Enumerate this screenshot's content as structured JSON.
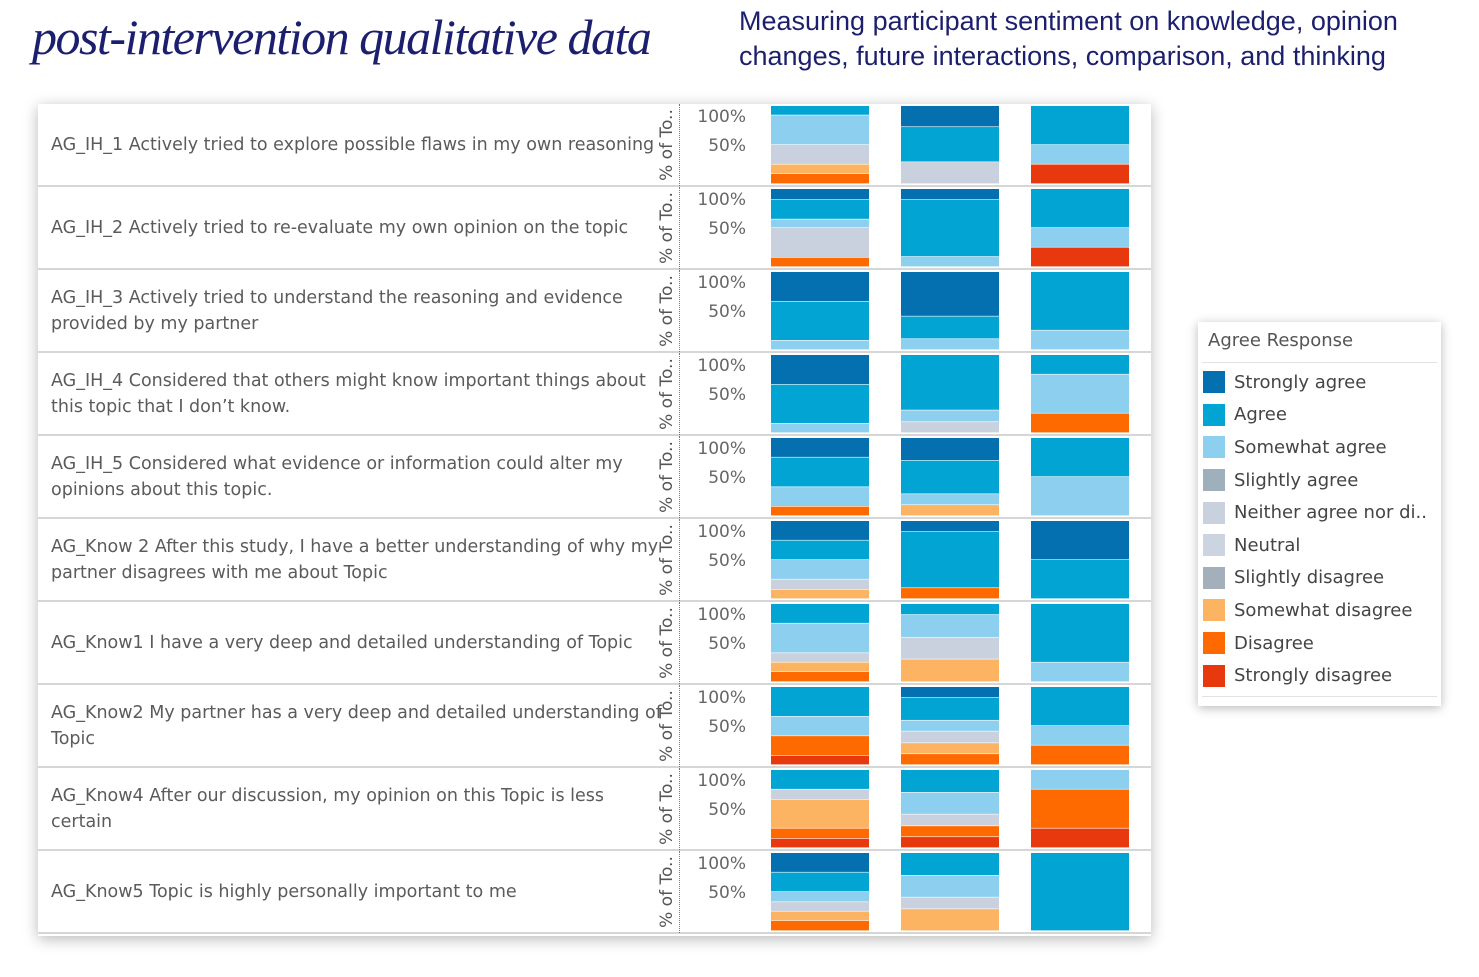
{
  "header": {
    "title": "post-intervention qualitative data",
    "subtitle": "Measuring participant sentiment on knowledge, opinion changes, future interactions, comparison, and thinking"
  },
  "chart_data": {
    "type": "bar",
    "subtype": "100% stacked column, small multiples (one row per survey item, three columns per row)",
    "y_axis_title": "% of To..",
    "y_ticks": [
      "100%",
      "50%"
    ],
    "ylim": [
      0,
      100
    ],
    "legend": {
      "title": "Agree Response",
      "placement": "right",
      "items": [
        {
          "name": "Strongly agree",
          "color": "#0570b0"
        },
        {
          "name": "Agree",
          "color": "#02a4d3"
        },
        {
          "name": "Somewhat agree",
          "color": "#8ccfee"
        },
        {
          "name": "Slightly agree",
          "color": "#9fb0bd"
        },
        {
          "name": "Neither agree nor di..",
          "color": "#c8d1dd"
        },
        {
          "name": "Neutral",
          "color": "#ccd4df"
        },
        {
          "name": "Slightly disagree",
          "color": "#a3b0bc"
        },
        {
          "name": "Somewhat disagree",
          "color": "#fdb462"
        },
        {
          "name": "Disagree",
          "color": "#ff6a00"
        },
        {
          "name": "Strongly disagree",
          "color": "#e8380d"
        }
      ]
    },
    "rows": [
      {
        "label": "AG_IH_1 Actively tried to explore possible flaws in my own reasoning",
        "bars": [
          [
            {
              "c": "Agree",
              "v": 12
            },
            {
              "c": "Somewhat agree",
              "v": 38
            },
            {
              "c": "Neither agree nor di..",
              "v": 25
            },
            {
              "c": "Somewhat disagree",
              "v": 12
            },
            {
              "c": "Disagree",
              "v": 13
            }
          ],
          [
            {
              "c": "Strongly agree",
              "v": 27
            },
            {
              "c": "Agree",
              "v": 45
            },
            {
              "c": "Neither agree nor di..",
              "v": 28
            }
          ],
          [
            {
              "c": "Agree",
              "v": 50
            },
            {
              "c": "Somewhat agree",
              "v": 25
            },
            {
              "c": "Strongly disagree",
              "v": 25
            }
          ]
        ]
      },
      {
        "label": "AG_IH_2 Actively tried to re-evaluate my own opinion on the topic",
        "bars": [
          [
            {
              "c": "Strongly agree",
              "v": 14
            },
            {
              "c": "Agree",
              "v": 25
            },
            {
              "c": "Somewhat agree",
              "v": 11
            },
            {
              "c": "Neither agree nor di..",
              "v": 38
            },
            {
              "c": "Disagree",
              "v": 12
            }
          ],
          [
            {
              "c": "Strongly agree",
              "v": 14
            },
            {
              "c": "Agree",
              "v": 73
            },
            {
              "c": "Somewhat agree",
              "v": 13
            }
          ],
          [
            {
              "c": "Agree",
              "v": 50
            },
            {
              "c": "Somewhat agree",
              "v": 25
            },
            {
              "c": "Strongly disagree",
              "v": 25
            }
          ]
        ]
      },
      {
        "label": "AG_IH_3 Actively tried to understand the reasoning and evidence provided by my partner",
        "bars": [
          [
            {
              "c": "Strongly agree",
              "v": 38
            },
            {
              "c": "Agree",
              "v": 50
            },
            {
              "c": "Somewhat agree",
              "v": 12
            }
          ],
          [
            {
              "c": "Strongly agree",
              "v": 57
            },
            {
              "c": "Agree",
              "v": 29
            },
            {
              "c": "Somewhat agree",
              "v": 14
            }
          ],
          [
            {
              "c": "Agree",
              "v": 75
            },
            {
              "c": "Somewhat agree",
              "v": 25
            }
          ]
        ]
      },
      {
        "label": "AG_IH_4 Considered that others might know important things about this topic that I don’t know.",
        "bars": [
          [
            {
              "c": "Strongly agree",
              "v": 38
            },
            {
              "c": "Agree",
              "v": 50
            },
            {
              "c": "Somewhat agree",
              "v": 12
            }
          ],
          [
            {
              "c": "Agree",
              "v": 71
            },
            {
              "c": "Somewhat agree",
              "v": 15
            },
            {
              "c": "Neither agree nor di..",
              "v": 14
            }
          ],
          [
            {
              "c": "Agree",
              "v": 25
            },
            {
              "c": "Somewhat agree",
              "v": 50
            },
            {
              "c": "Disagree",
              "v": 25
            }
          ]
        ]
      },
      {
        "label": "AG_IH_5 Considered what evidence or information could alter my opinions about this topic.",
        "bars": [
          [
            {
              "c": "Strongly agree",
              "v": 25
            },
            {
              "c": "Agree",
              "v": 38
            },
            {
              "c": "Somewhat agree",
              "v": 25
            },
            {
              "c": "Disagree",
              "v": 12
            }
          ],
          [
            {
              "c": "Strongly agree",
              "v": 29
            },
            {
              "c": "Agree",
              "v": 43
            },
            {
              "c": "Somewhat agree",
              "v": 14
            },
            {
              "c": "Somewhat disagree",
              "v": 14
            }
          ],
          [
            {
              "c": "Agree",
              "v": 50
            },
            {
              "c": "Somewhat agree",
              "v": 50
            }
          ]
        ]
      },
      {
        "label": "AG_Know 2 After this study, I have a better understanding of why my partner disagrees with me about Topic",
        "bars": [
          [
            {
              "c": "Strongly agree",
              "v": 25
            },
            {
              "c": "Agree",
              "v": 25
            },
            {
              "c": "Somewhat agree",
              "v": 25
            },
            {
              "c": "Neither agree nor di..",
              "v": 13
            },
            {
              "c": "Somewhat disagree",
              "v": 12
            }
          ],
          [
            {
              "c": "Strongly agree",
              "v": 14
            },
            {
              "c": "Agree",
              "v": 72
            },
            {
              "c": "Disagree",
              "v": 14
            }
          ],
          [
            {
              "c": "Strongly agree",
              "v": 50
            },
            {
              "c": "Agree",
              "v": 50
            }
          ]
        ]
      },
      {
        "label": "AG_Know1 I have a very deep and detailed understanding of Topic",
        "bars": [
          [
            {
              "c": "Agree",
              "v": 25
            },
            {
              "c": "Somewhat agree",
              "v": 38
            },
            {
              "c": "Neither agree nor di..",
              "v": 12
            },
            {
              "c": "Somewhat disagree",
              "v": 12
            },
            {
              "c": "Disagree",
              "v": 13
            }
          ],
          [
            {
              "c": "Agree",
              "v": 14
            },
            {
              "c": "Somewhat agree",
              "v": 29
            },
            {
              "c": "Neither agree nor di..",
              "v": 28
            },
            {
              "c": "Somewhat disagree",
              "v": 29
            }
          ],
          [
            {
              "c": "Agree",
              "v": 75
            },
            {
              "c": "Somewhat agree",
              "v": 25
            }
          ]
        ]
      },
      {
        "label": "AG_Know2 My partner has a very deep and detailed understanding of Topic",
        "bars": [
          [
            {
              "c": "Agree",
              "v": 38
            },
            {
              "c": "Somewhat agree",
              "v": 25
            },
            {
              "c": "Disagree",
              "v": 25
            },
            {
              "c": "Strongly disagree",
              "v": 12
            }
          ],
          [
            {
              "c": "Strongly agree",
              "v": 14
            },
            {
              "c": "Agree",
              "v": 29
            },
            {
              "c": "Somewhat agree",
              "v": 14
            },
            {
              "c": "Neither agree nor di..",
              "v": 15
            },
            {
              "c": "Somewhat disagree",
              "v": 14
            },
            {
              "c": "Disagree",
              "v": 14
            }
          ],
          [
            {
              "c": "Agree",
              "v": 50
            },
            {
              "c": "Somewhat agree",
              "v": 25
            },
            {
              "c": "Disagree",
              "v": 25
            }
          ]
        ]
      },
      {
        "label": "AG_Know4 After our discussion, my opinion on this Topic is less certain",
        "bars": [
          [
            {
              "c": "Agree",
              "v": 25
            },
            {
              "c": "Neither agree nor di..",
              "v": 13
            },
            {
              "c": "Somewhat disagree",
              "v": 37
            },
            {
              "c": "Disagree",
              "v": 13
            },
            {
              "c": "Strongly disagree",
              "v": 12
            }
          ],
          [
            {
              "c": "Agree",
              "v": 29
            },
            {
              "c": "Somewhat agree",
              "v": 28
            },
            {
              "c": "Neither agree nor di..",
              "v": 15
            },
            {
              "c": "Disagree",
              "v": 14
            },
            {
              "c": "Strongly disagree",
              "v": 14
            }
          ],
          [
            {
              "c": "Somewhat agree",
              "v": 25
            },
            {
              "c": "Disagree",
              "v": 50
            },
            {
              "c": "Strongly disagree",
              "v": 25
            }
          ]
        ]
      },
      {
        "label": "AG_Know5 Topic is highly personally important to me",
        "bars": [
          [
            {
              "c": "Strongly agree",
              "v": 25
            },
            {
              "c": "Agree",
              "v": 25
            },
            {
              "c": "Somewhat agree",
              "v": 13
            },
            {
              "c": "Neither agree nor di..",
              "v": 12
            },
            {
              "c": "Somewhat disagree",
              "v": 12
            },
            {
              "c": "Disagree",
              "v": 13
            }
          ],
          [
            {
              "c": "Agree",
              "v": 29
            },
            {
              "c": "Somewhat agree",
              "v": 28
            },
            {
              "c": "Neither agree nor di..",
              "v": 15
            },
            {
              "c": "Somewhat disagree",
              "v": 28
            }
          ],
          [
            {
              "c": "Agree",
              "v": 100
            }
          ]
        ]
      }
    ]
  }
}
